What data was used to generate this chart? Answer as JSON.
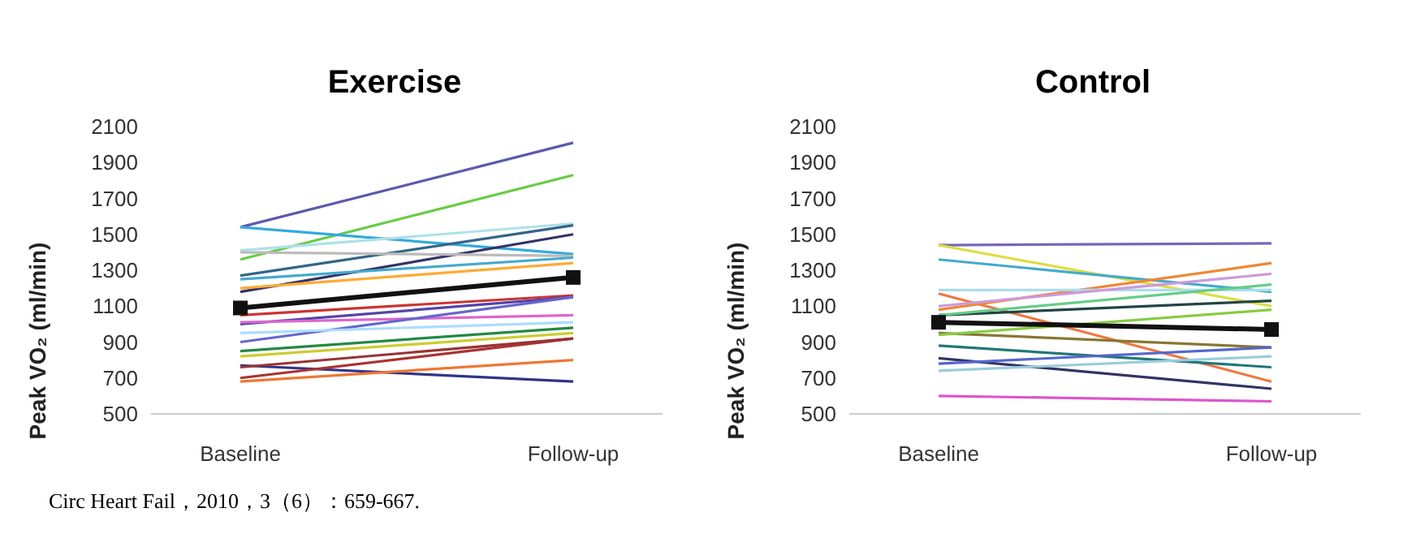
{
  "chart_data": [
    {
      "type": "line",
      "title": "Exercise",
      "ylabel": "Peak VO₂ (ml/min)",
      "categories": [
        "Baseline",
        "Follow-up"
      ],
      "ylim": [
        500,
        2100
      ],
      "yticks": [
        500,
        700,
        900,
        1100,
        1300,
        1500,
        1700,
        1900,
        2100
      ],
      "grid": false,
      "legend": false,
      "marker": "none",
      "line_style": "solid",
      "annotations": [
        "Circ Heart Fail，2010，3（6）：659-667."
      ],
      "series": [
        {
          "color": "#5a5ab0",
          "values": [
            1540,
            2010
          ]
        },
        {
          "color": "#66cc44",
          "values": [
            1360,
            1830
          ]
        },
        {
          "color": "#33aadd",
          "values": [
            1540,
            1390
          ]
        },
        {
          "color": "#aee0ea",
          "values": [
            1410,
            1560
          ]
        },
        {
          "color": "#336688",
          "values": [
            1270,
            1550
          ]
        },
        {
          "color": "#333366",
          "values": [
            1180,
            1500
          ]
        },
        {
          "color": "#bbbbbb",
          "values": [
            1400,
            1380
          ]
        },
        {
          "color": "#44aacc",
          "values": [
            1250,
            1370
          ]
        },
        {
          "color": "#ffaa33",
          "values": [
            1200,
            1340
          ]
        },
        {
          "color": "#cc3333",
          "values": [
            1050,
            1160
          ]
        },
        {
          "color": "#5544aa",
          "values": [
            1000,
            1150
          ]
        },
        {
          "color": "#dd66cc",
          "values": [
            1010,
            1050
          ]
        },
        {
          "color": "#6666cc",
          "values": [
            900,
            1150
          ]
        },
        {
          "color": "#aaddff",
          "values": [
            950,
            1010
          ]
        },
        {
          "color": "#228844",
          "values": [
            850,
            980
          ]
        },
        {
          "color": "#cccc33",
          "values": [
            820,
            950
          ]
        },
        {
          "color": "#333388",
          "values": [
            770,
            680
          ]
        },
        {
          "color": "#aa3333",
          "values": [
            700,
            920
          ]
        },
        {
          "color": "#ee7733",
          "values": [
            680,
            800
          ]
        },
        {
          "color": "#993333",
          "values": [
            760,
            920
          ]
        },
        {
          "color": "#111111",
          "values": [
            1090,
            1260
          ],
          "marker": "square"
        }
      ]
    },
    {
      "type": "line",
      "title": "Control",
      "ylabel": "Peak VO₂ (ml/min)",
      "categories": [
        "Baseline",
        "Follow-up"
      ],
      "ylim": [
        500,
        2100
      ],
      "yticks": [
        500,
        700,
        900,
        1100,
        1300,
        1500,
        1700,
        1900,
        2100
      ],
      "grid": false,
      "legend": false,
      "marker": "none",
      "line_style": "solid",
      "series": [
        {
          "color": "#7766bb",
          "values": [
            1440,
            1450
          ]
        },
        {
          "color": "#dddd44",
          "values": [
            1440,
            1100
          ]
        },
        {
          "color": "#44aacc",
          "values": [
            1360,
            1180
          ]
        },
        {
          "color": "#ee7744",
          "values": [
            1170,
            680
          ]
        },
        {
          "color": "#ee8833",
          "values": [
            1080,
            1340
          ]
        },
        {
          "color": "#aaddee",
          "values": [
            1190,
            1190
          ]
        },
        {
          "color": "#224444",
          "values": [
            1050,
            1130
          ]
        },
        {
          "color": "#cc99dd",
          "values": [
            1100,
            1280
          ]
        },
        {
          "color": "#66cc88",
          "values": [
            1050,
            1220
          ]
        },
        {
          "color": "#887733",
          "values": [
            950,
            870
          ]
        },
        {
          "color": "#227777",
          "values": [
            880,
            760
          ]
        },
        {
          "color": "#333366",
          "values": [
            810,
            640
          ]
        },
        {
          "color": "#5566cc",
          "values": [
            780,
            870
          ]
        },
        {
          "color": "#99ccdd",
          "values": [
            740,
            820
          ]
        },
        {
          "color": "#dd55cc",
          "values": [
            600,
            570
          ]
        },
        {
          "color": "#88cc44",
          "values": [
            940,
            1080
          ]
        },
        {
          "color": "#111111",
          "values": [
            1010,
            970
          ],
          "marker": "square"
        }
      ]
    }
  ]
}
